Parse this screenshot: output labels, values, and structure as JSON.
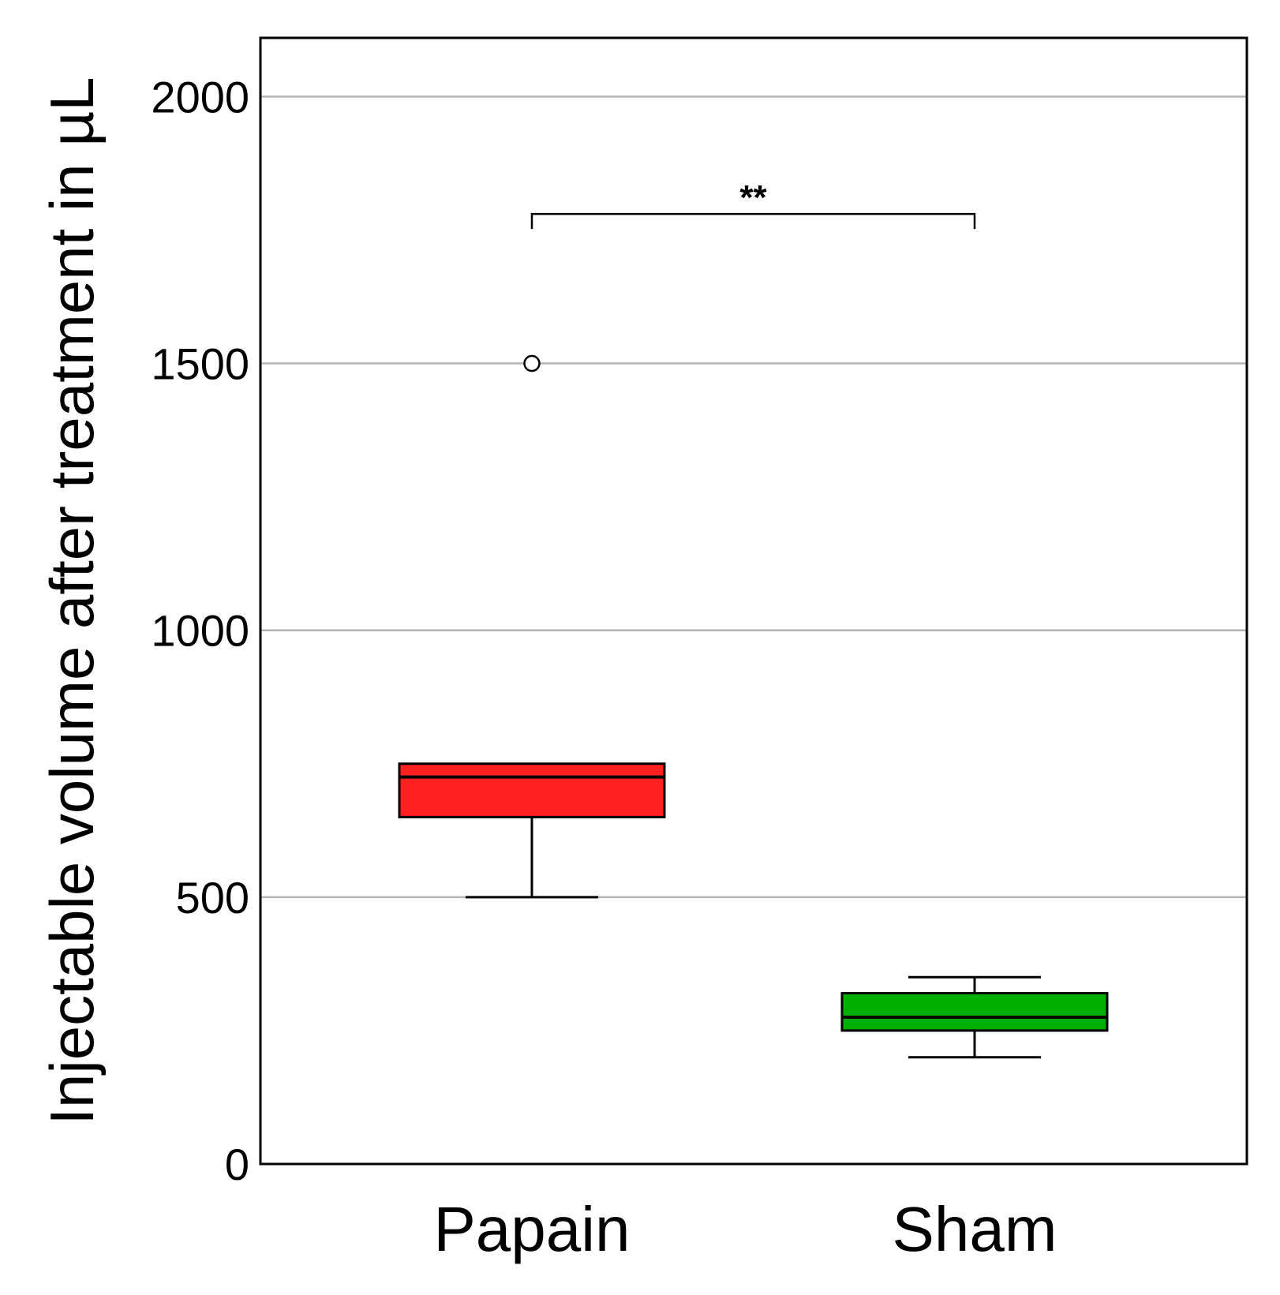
{
  "chart_data": {
    "type": "box",
    "ylabel": "Injectable volume after treatment in µL",
    "ylim": [
      0,
      2110
    ],
    "yticks": [
      0,
      500,
      1000,
      1500,
      2000
    ],
    "grid": true,
    "categories": [
      "Papain",
      "Sham"
    ],
    "groups": [
      {
        "name": "Papain",
        "color": "#ff2020",
        "whisker_low": 500,
        "q1": 650,
        "median": 725,
        "q3": 750,
        "whisker_high": 750,
        "outliers": [
          1500
        ]
      },
      {
        "name": "Sham",
        "color": "#00b000",
        "whisker_low": 200,
        "q1": 250,
        "median": 275,
        "q3": 320,
        "whisker_high": 350,
        "outliers": []
      }
    ],
    "significance": {
      "between": [
        "Papain",
        "Sham"
      ],
      "label": "**",
      "y": 1780
    }
  }
}
